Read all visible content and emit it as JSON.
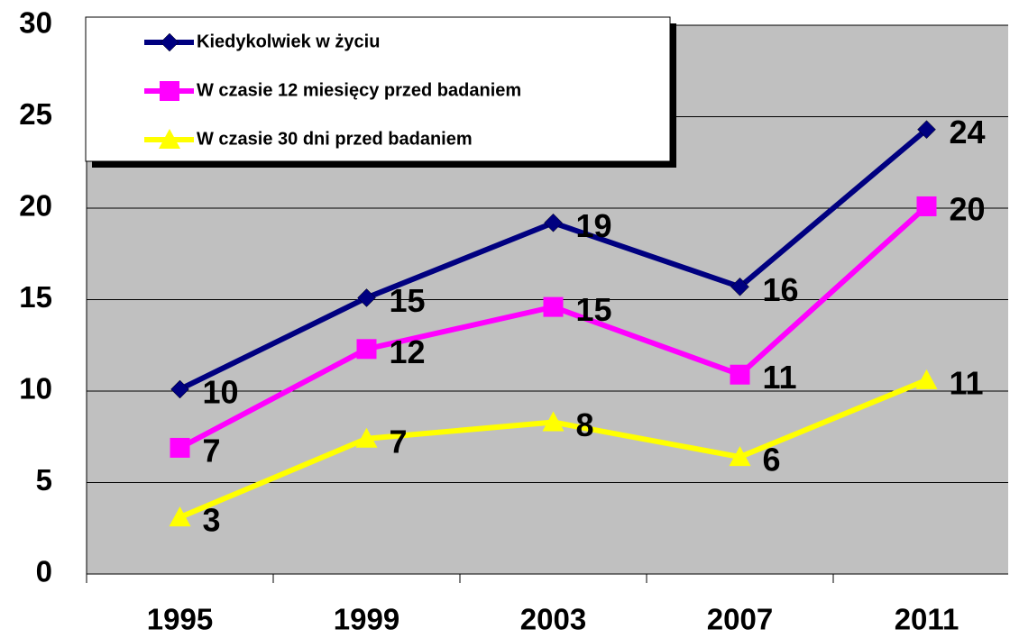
{
  "chart_data": {
    "type": "line",
    "categories": [
      "1995",
      "1999",
      "2003",
      "2007",
      "2011"
    ],
    "series": [
      {
        "name": "Kiedykolwiek w życiu",
        "color": "#000080",
        "marker": "diamond",
        "values": [
          10.1,
          15.1,
          19.2,
          15.7,
          24.3
        ],
        "value_labels": [
          "10",
          "15",
          "19",
          "16",
          "24"
        ]
      },
      {
        "name": "W czasie 12 miesięcy przed badaniem",
        "color": "#ff00ff",
        "marker": "square",
        "values": [
          6.9,
          12.3,
          14.6,
          10.9,
          20.1
        ],
        "value_labels": [
          "7",
          "12",
          "15",
          "11",
          "20"
        ]
      },
      {
        "name": "W czasie 30 dni przed badaniem",
        "color": "#ffff00",
        "marker": "triangle",
        "values": [
          3.1,
          7.4,
          8.3,
          6.4,
          10.6
        ],
        "value_labels": [
          "3",
          "7",
          "8",
          "6",
          "11"
        ]
      }
    ],
    "ylim": [
      0,
      30
    ],
    "yticks": [
      0,
      5,
      10,
      15,
      20,
      25,
      30
    ],
    "grid": true,
    "background": "#c0c0c0",
    "legend": "top-left"
  }
}
